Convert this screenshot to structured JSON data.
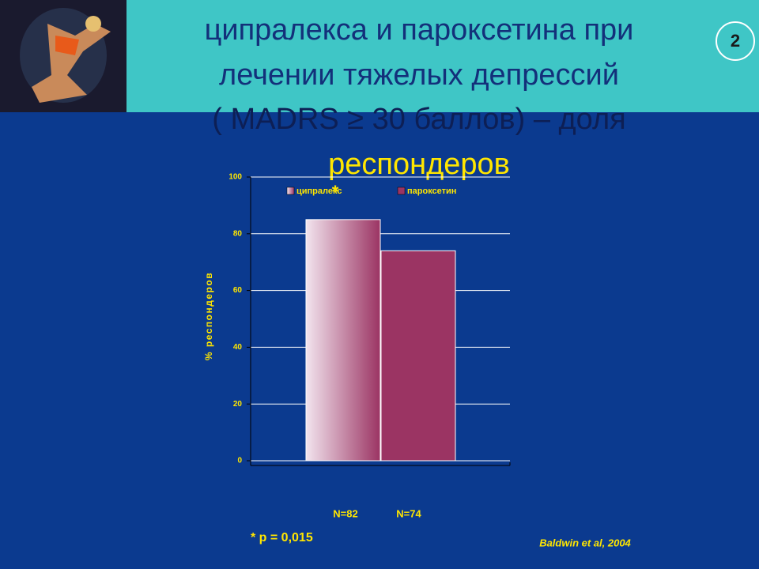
{
  "slide_number": "2",
  "chart_data": {
    "type": "bar",
    "title": [
      "ципралекса и пароксетина при",
      "лечении тяжелых депрессий",
      "( MADRS ≥ 30 баллов) – доля",
      "респондеров"
    ],
    "y_label": "% респондеров",
    "series": [
      {
        "name": "ципралекс",
        "color": "#9b3463",
        "values": [
          85
        ]
      },
      {
        "name": "пароксетин",
        "color": "#9b3463",
        "values": [
          74
        ]
      }
    ],
    "sample_labels": [
      "N=82",
      "N=74"
    ],
    "significance_marker": "*",
    "footnote": "* p = 0,015",
    "source": "Baldwin et al, 2004",
    "ylim": [
      0,
      100
    ],
    "yticks": [
      0,
      20,
      40,
      60,
      80,
      100
    ],
    "grid": true
  }
}
